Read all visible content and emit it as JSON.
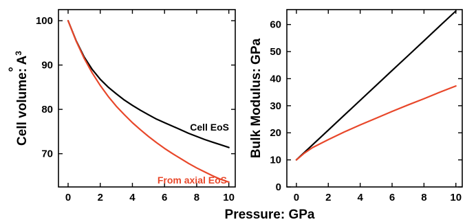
{
  "figure": {
    "shared_xlabel": "Pressure: GPa"
  },
  "colors": {
    "cell_eos": "#000000",
    "axial_eos": "#e8472a"
  },
  "chart_data": [
    {
      "type": "line",
      "ylabel_text": "Cell volume: ",
      "ylabel_unit_base": "A",
      "ylabel_unit_accent": "°",
      "ylabel_unit_exp": "3",
      "xlim": [
        -0.6,
        10.4
      ],
      "ylim": [
        62.5,
        102.5
      ],
      "xticks": [
        0,
        2,
        4,
        6,
        8,
        10
      ],
      "yticks": [
        70,
        80,
        90,
        100
      ],
      "grid": false,
      "annotations": [
        {
          "text": "Cell EoS",
          "color_key": "cell_eos"
        },
        {
          "text": "From axial EoS",
          "color_key": "axial_eos"
        }
      ],
      "series": [
        {
          "color_key": "cell_eos",
          "x": [
            0,
            0.5,
            1,
            1.5,
            2,
            2.5,
            3,
            3.5,
            4,
            4.5,
            5,
            5.5,
            6,
            6.5,
            7,
            7.5,
            8,
            8.5,
            9,
            9.5,
            10
          ],
          "values": [
            100.0,
            95.5,
            91.8,
            89.0,
            86.8,
            85.0,
            83.5,
            82.1,
            80.9,
            79.8,
            78.8,
            77.8,
            77.0,
            76.2,
            75.4,
            74.6,
            73.9,
            73.2,
            72.6,
            72.0,
            71.4
          ]
        },
        {
          "color_key": "axial_eos",
          "x": [
            0,
            0.5,
            1,
            1.5,
            2,
            2.5,
            3,
            3.5,
            4,
            4.5,
            5,
            5.5,
            6,
            6.5,
            7,
            7.5,
            8,
            8.5,
            9,
            9.5,
            10
          ],
          "values": [
            100.0,
            95.4,
            91.5,
            88.2,
            85.4,
            82.9,
            80.7,
            78.8,
            77.0,
            75.4,
            73.9,
            72.5,
            71.2,
            70.0,
            68.9,
            67.8,
            66.8,
            65.9,
            65.0,
            64.2,
            63.6
          ]
        }
      ]
    },
    {
      "type": "line",
      "ylabel": "Bulk Modulus: GPa",
      "xlim": [
        -0.6,
        10.4
      ],
      "ylim": [
        0,
        65.5
      ],
      "xticks": [
        0,
        2,
        4,
        6,
        8,
        10
      ],
      "yticks": [
        0,
        10,
        20,
        30,
        40,
        50,
        60
      ],
      "grid": false,
      "series": [
        {
          "color_key": "cell_eos",
          "x": [
            0,
            1,
            2,
            3,
            4,
            5,
            6,
            7,
            8,
            9,
            10
          ],
          "values": [
            10.0,
            15.5,
            21.0,
            26.5,
            32.0,
            37.5,
            43.0,
            48.5,
            54.0,
            59.5,
            65.0
          ]
        },
        {
          "color_key": "axial_eos",
          "x": [
            0,
            0.5,
            1,
            2,
            3,
            4,
            5,
            6,
            7,
            8,
            9,
            10
          ],
          "values": [
            10.0,
            12.5,
            14.5,
            17.5,
            20.3,
            22.9,
            25.4,
            27.9,
            30.3,
            32.6,
            35.0,
            37.3
          ]
        }
      ]
    }
  ]
}
